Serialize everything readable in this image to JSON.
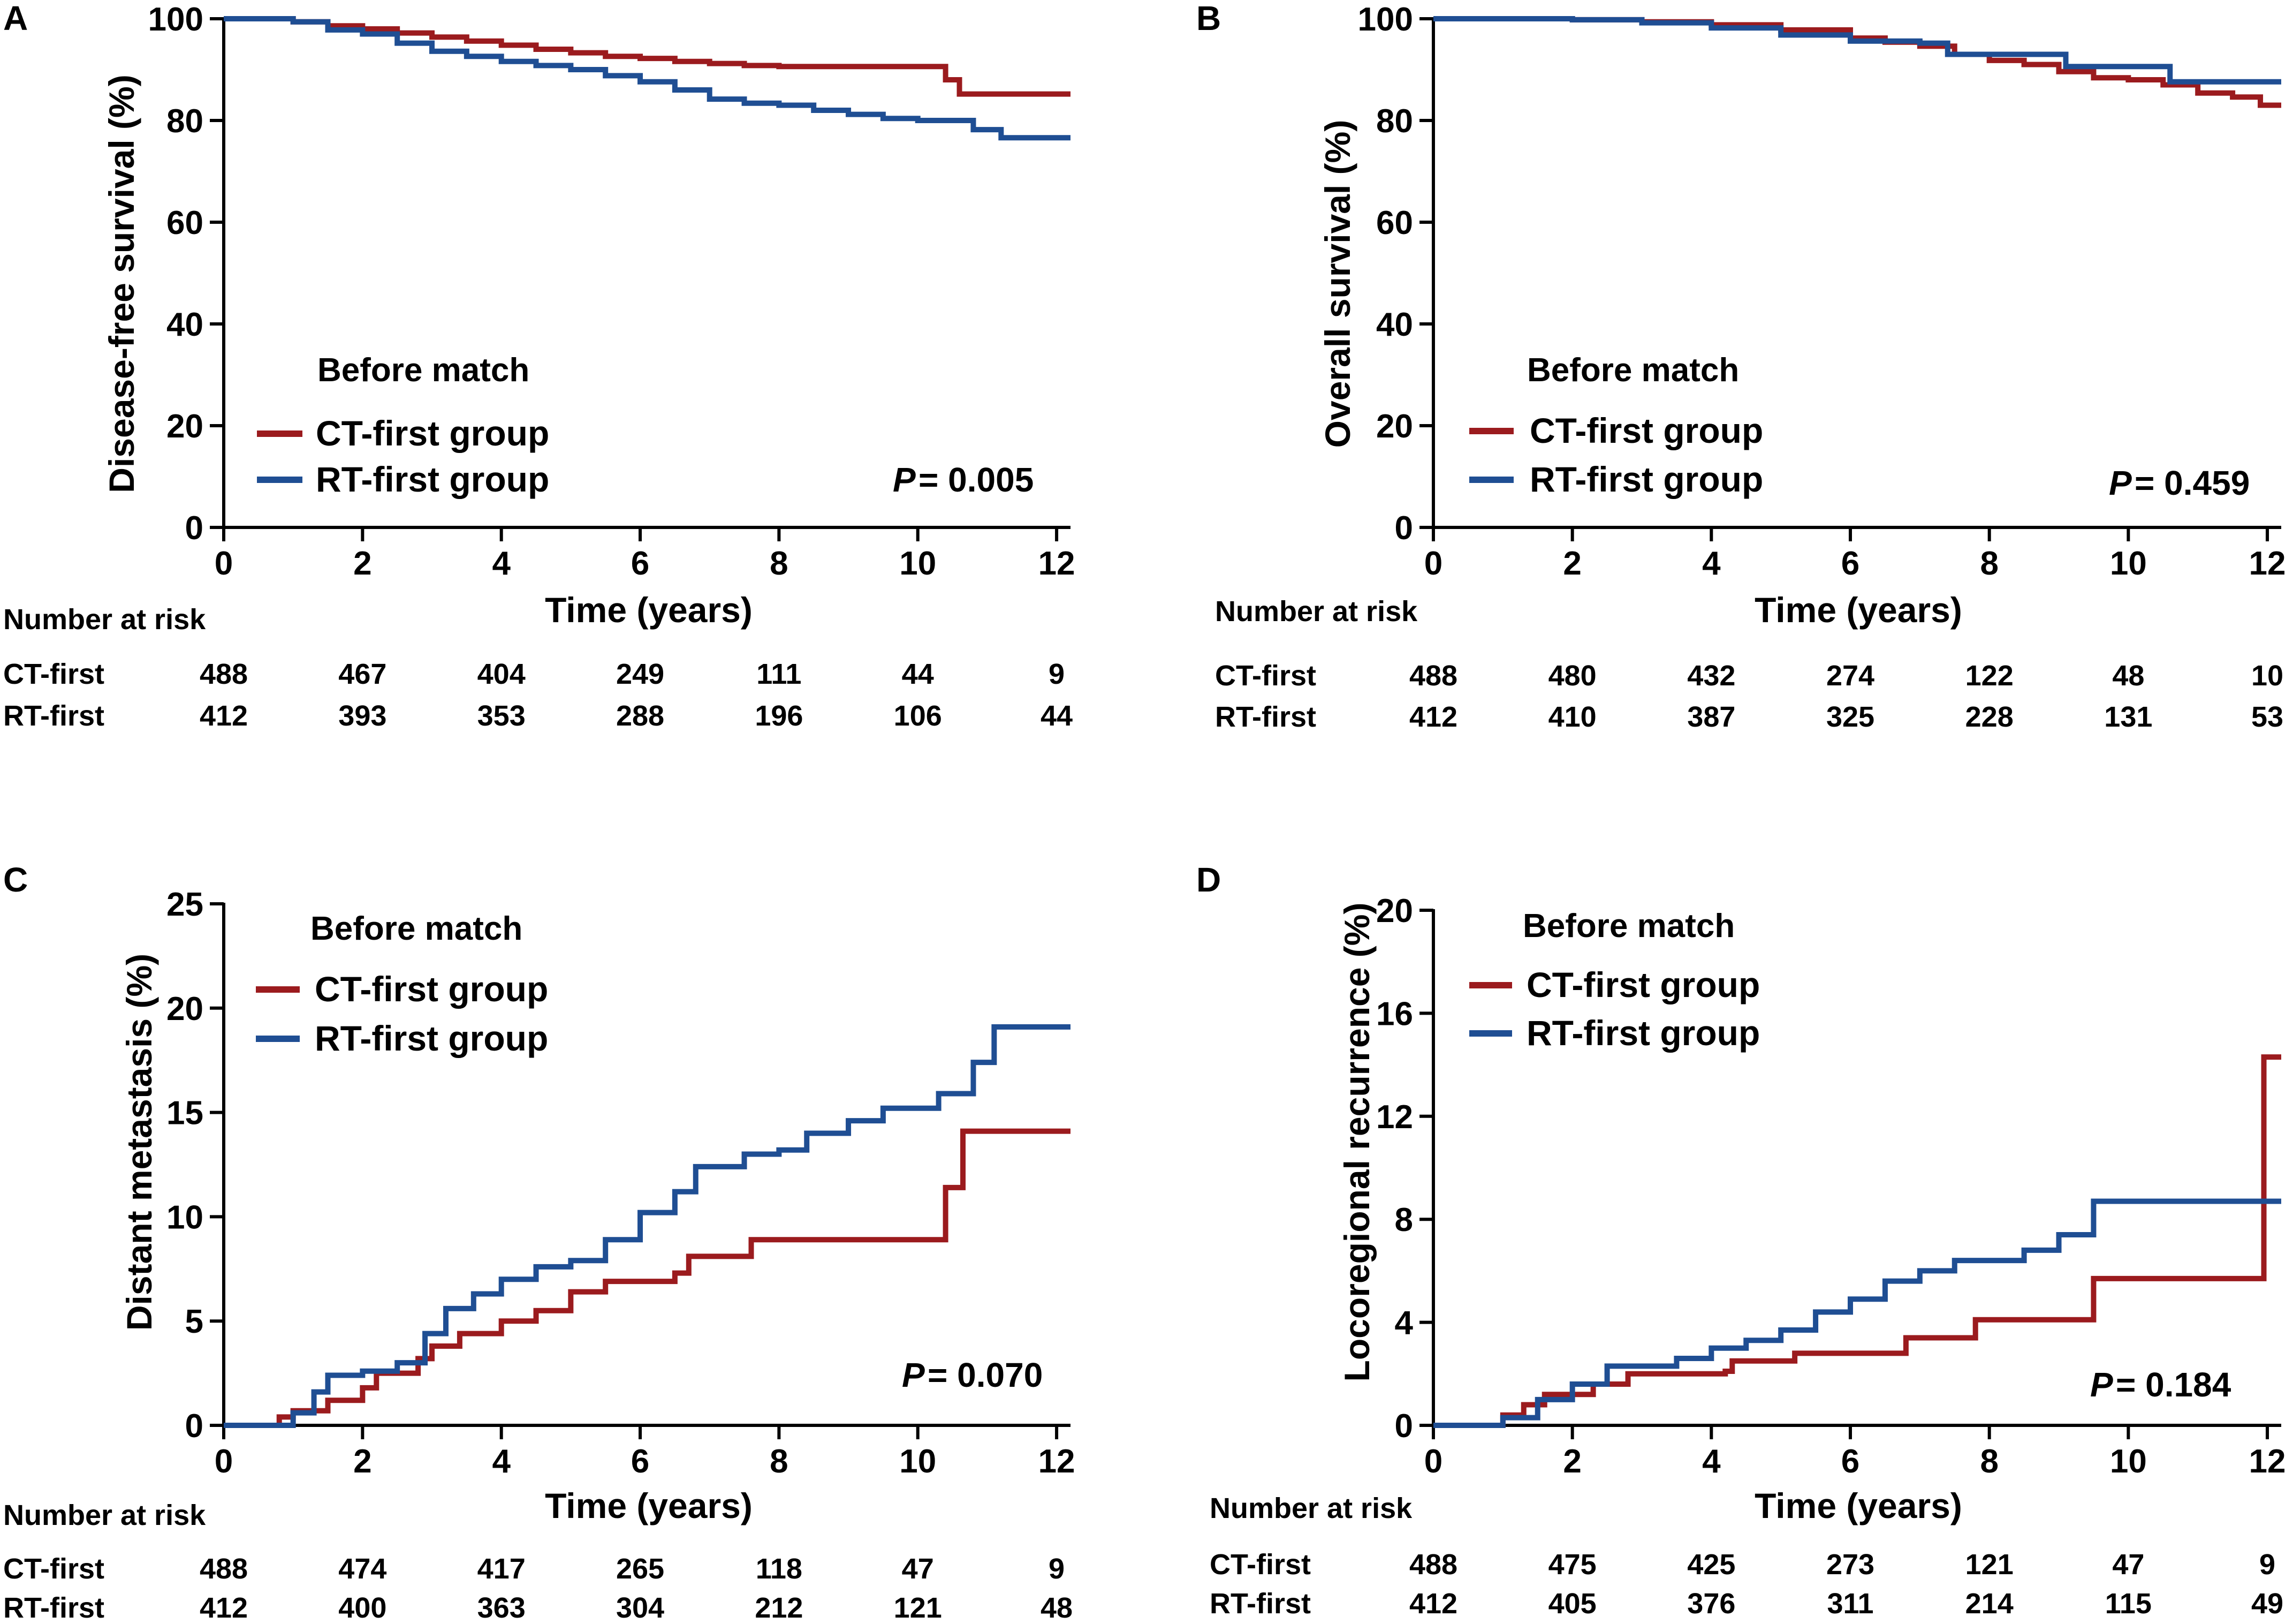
{
  "figure": {
    "legend_title": "Before match",
    "x_axis_title": "Time (years)",
    "number_at_risk_label": "Number at risk",
    "p_prefix": "P",
    "colors": {
      "ct": "#9b1b1e",
      "rt": "#1f4e93"
    }
  },
  "chart_data": [
    {
      "panel": "A",
      "type": "line",
      "title": "",
      "ylabel": "Disease-free survival (%)",
      "xlabel": "Time (years)",
      "xlim": [
        0,
        12.2
      ],
      "ylim": [
        0,
        100
      ],
      "xticks": [
        0,
        2,
        4,
        6,
        8,
        10,
        12
      ],
      "yticks": [
        0,
        20,
        40,
        60,
        80,
        100
      ],
      "legend_title": "Before match",
      "legend": [
        "CT-first group",
        "RT-first group"
      ],
      "p_value": "= 0.005",
      "risk_rows": [
        "CT-first",
        "RT-first"
      ],
      "risk_times": [
        0,
        2,
        4,
        6,
        8,
        10,
        12
      ],
      "risk": {
        "ct": [
          "488",
          "467",
          "404",
          "249",
          "111",
          "44",
          "9"
        ],
        "rt": [
          "412",
          "393",
          "353",
          "288",
          "196",
          "106",
          "44"
        ]
      },
      "series": [
        {
          "name": "CT-first group",
          "key": "ct",
          "points": [
            [
              0,
              100
            ],
            [
              0.5,
              100
            ],
            [
              1.0,
              99.4
            ],
            [
              1.5,
              98.6
            ],
            [
              2,
              98
            ],
            [
              2.5,
              97.2
            ],
            [
              3,
              96.4
            ],
            [
              3.5,
              95.6
            ],
            [
              4,
              94.8
            ],
            [
              4.5,
              94.0
            ],
            [
              5,
              93.3
            ],
            [
              5.5,
              92.6
            ],
            [
              6,
              92.2
            ],
            [
              6.5,
              91.6
            ],
            [
              7,
              91.2
            ],
            [
              7.5,
              90.8
            ],
            [
              8,
              90.6
            ],
            [
              9,
              90.6
            ],
            [
              10.4,
              90.6
            ],
            [
              10.4,
              88
            ],
            [
              10.6,
              88
            ],
            [
              10.6,
              85.2
            ],
            [
              12.2,
              85.2
            ]
          ]
        },
        {
          "name": "RT-first group",
          "key": "rt",
          "points": [
            [
              0,
              100
            ],
            [
              0.5,
              100
            ],
            [
              1.0,
              99.4
            ],
            [
              1.5,
              97.8
            ],
            [
              2,
              97
            ],
            [
              2.5,
              95.2
            ],
            [
              3,
              93.6
            ],
            [
              3.5,
              92.6
            ],
            [
              4,
              91.6
            ],
            [
              4.5,
              90.8
            ],
            [
              5,
              90.0
            ],
            [
              5.5,
              88.8
            ],
            [
              6,
              87.6
            ],
            [
              6.5,
              86.0
            ],
            [
              7,
              84.2
            ],
            [
              7.5,
              83.4
            ],
            [
              8,
              83.0
            ],
            [
              8.5,
              82.0
            ],
            [
              9,
              81.2
            ],
            [
              9.5,
              80.4
            ],
            [
              10,
              80.0
            ],
            [
              10.8,
              80.0
            ],
            [
              10.8,
              78.2
            ],
            [
              11.2,
              76.6
            ],
            [
              12.2,
              76.6
            ]
          ]
        }
      ]
    },
    {
      "panel": "B",
      "type": "line",
      "title": "",
      "ylabel": "Overall  survival (%)",
      "xlabel": "Time (years)",
      "xlim": [
        0,
        12.2
      ],
      "ylim": [
        0,
        100
      ],
      "xticks": [
        0,
        2,
        4,
        6,
        8,
        10,
        12
      ],
      "yticks": [
        0,
        20,
        40,
        60,
        80,
        100
      ],
      "legend_title": "Before match",
      "legend": [
        "CT-first group",
        "RT-first group"
      ],
      "p_value": "= 0.459",
      "risk_rows": [
        "CT-first",
        "RT-first"
      ],
      "risk_times": [
        0,
        2,
        4,
        6,
        8,
        10,
        12
      ],
      "risk": {
        "ct": [
          "488",
          "480",
          "432",
          "274",
          "122",
          "48",
          "10"
        ],
        "rt": [
          "412",
          "410",
          "387",
          "325",
          "228",
          "131",
          "53"
        ]
      },
      "series": [
        {
          "name": "CT-first group",
          "key": "ct",
          "points": [
            [
              0,
              100
            ],
            [
              1,
              100
            ],
            [
              2,
              99.8
            ],
            [
              3,
              99.4
            ],
            [
              4,
              98.8
            ],
            [
              5,
              97.8
            ],
            [
              6,
              96.2
            ],
            [
              6.5,
              95.4
            ],
            [
              7,
              94.6
            ],
            [
              7.5,
              93.0
            ],
            [
              8,
              91.8
            ],
            [
              8.5,
              91.0
            ],
            [
              9,
              89.6
            ],
            [
              9.5,
              88.4
            ],
            [
              10,
              88.0
            ],
            [
              10.5,
              87.0
            ],
            [
              11,
              85.4
            ],
            [
              11.5,
              84.6
            ],
            [
              11.9,
              84.6
            ],
            [
              11.9,
              83.0
            ],
            [
              12.2,
              83.0
            ]
          ]
        },
        {
          "name": "RT-first group",
          "key": "rt",
          "points": [
            [
              0,
              100
            ],
            [
              1,
              100
            ],
            [
              2,
              99.8
            ],
            [
              3,
              99.2
            ],
            [
              4,
              98.2
            ],
            [
              5,
              96.8
            ],
            [
              6,
              95.6
            ],
            [
              7,
              95.2
            ],
            [
              7.4,
              95.2
            ],
            [
              7.4,
              93.0
            ],
            [
              9.1,
              93.0
            ],
            [
              9.1,
              90.6
            ],
            [
              10.6,
              90.6
            ],
            [
              10.6,
              87.6
            ],
            [
              12.2,
              87.6
            ]
          ]
        }
      ]
    },
    {
      "panel": "C",
      "type": "line",
      "title": "",
      "ylabel": "Distant metastasis (%)",
      "xlabel": "Time (years)",
      "xlim": [
        0,
        12.2
      ],
      "ylim": [
        0,
        25
      ],
      "xticks": [
        0,
        2,
        4,
        6,
        8,
        10,
        12
      ],
      "yticks": [
        0,
        5,
        10,
        15,
        20,
        25
      ],
      "legend_title": "Before match",
      "legend": [
        "CT-first group",
        "RT-first group"
      ],
      "p_value": "= 0.070",
      "risk_rows": [
        "CT-first",
        "RT-first"
      ],
      "risk_times": [
        0,
        2,
        4,
        6,
        8,
        10,
        12
      ],
      "risk": {
        "ct": [
          "488",
          "474",
          "417",
          "265",
          "118",
          "47",
          "9"
        ],
        "rt": [
          "412",
          "400",
          "363",
          "304",
          "212",
          "121",
          "48"
        ]
      },
      "series": [
        {
          "name": "CT-first group",
          "key": "ct",
          "points": [
            [
              0,
              0
            ],
            [
              0.6,
              0
            ],
            [
              0.8,
              0.4
            ],
            [
              1.0,
              0.7
            ],
            [
              1.5,
              1.2
            ],
            [
              2,
              1.8
            ],
            [
              2.2,
              2.5
            ],
            [
              2.8,
              3.2
            ],
            [
              3.0,
              3.8
            ],
            [
              3.4,
              4.4
            ],
            [
              4,
              5.0
            ],
            [
              4.5,
              5.5
            ],
            [
              5,
              6.4
            ],
            [
              5.5,
              6.9
            ],
            [
              6.5,
              7.3
            ],
            [
              6.7,
              8.1
            ],
            [
              7.6,
              8.1
            ],
            [
              7.6,
              8.9
            ],
            [
              10.4,
              8.9
            ],
            [
              10.4,
              11.4
            ],
            [
              10.65,
              11.4
            ],
            [
              10.65,
              14.1
            ],
            [
              12.2,
              14.1
            ]
          ]
        },
        {
          "name": "RT-first group",
          "key": "rt",
          "points": [
            [
              0,
              0
            ],
            [
              0.6,
              0
            ],
            [
              1.0,
              0.6
            ],
            [
              1.3,
              1.6
            ],
            [
              1.5,
              2.4
            ],
            [
              2,
              2.6
            ],
            [
              2.5,
              3.0
            ],
            [
              2.9,
              4.4
            ],
            [
              3.2,
              5.6
            ],
            [
              3.6,
              6.3
            ],
            [
              4.0,
              7.0
            ],
            [
              4.5,
              7.6
            ],
            [
              5,
              7.9
            ],
            [
              5.5,
              8.9
            ],
            [
              6,
              10.2
            ],
            [
              6.5,
              11.2
            ],
            [
              6.8,
              12.4
            ],
            [
              7.5,
              13.0
            ],
            [
              8,
              13.2
            ],
            [
              8.4,
              14.0
            ],
            [
              9,
              14.6
            ],
            [
              9.5,
              15.2
            ],
            [
              10.3,
              15.2
            ],
            [
              10.3,
              15.9
            ],
            [
              10.8,
              15.9
            ],
            [
              10.8,
              17.4
            ],
            [
              11.1,
              17.4
            ],
            [
              11.1,
              19.1
            ],
            [
              12.2,
              19.1
            ]
          ]
        }
      ]
    },
    {
      "panel": "D",
      "type": "line",
      "title": "",
      "ylabel": "Locoregional recurrence (%)",
      "xlabel": "Time (years)",
      "xlim": [
        0,
        12.2
      ],
      "ylim": [
        0,
        20
      ],
      "xticks": [
        0,
        2,
        4,
        6,
        8,
        10,
        12
      ],
      "yticks": [
        0,
        4,
        8,
        12,
        16,
        20
      ],
      "legend_title": "Before match",
      "legend": [
        "CT-first group",
        "RT-first group"
      ],
      "p_value": "= 0.184",
      "risk_rows": [
        "CT-first",
        "RT-first"
      ],
      "risk_times": [
        0,
        2,
        4,
        6,
        8,
        10,
        12
      ],
      "risk": {
        "ct": [
          "488",
          "475",
          "425",
          "273",
          "121",
          "47",
          "9"
        ],
        "rt": [
          "412",
          "405",
          "376",
          "311",
          "214",
          "115",
          "49"
        ]
      },
      "series": [
        {
          "name": "CT-first group",
          "key": "ct",
          "points": [
            [
              0,
              0
            ],
            [
              0.7,
              0
            ],
            [
              1.0,
              0.4
            ],
            [
              1.3,
              0.8
            ],
            [
              1.6,
              1.2
            ],
            [
              2.3,
              1.6
            ],
            [
              2.8,
              2.0
            ],
            [
              4.2,
              2.1
            ],
            [
              4.3,
              2.5
            ],
            [
              5.2,
              2.8
            ],
            [
              6.8,
              2.8
            ],
            [
              6.8,
              3.4
            ],
            [
              7.8,
              3.4
            ],
            [
              7.8,
              4.1
            ],
            [
              9.5,
              4.1
            ],
            [
              9.5,
              5.7
            ],
            [
              11.95,
              5.7
            ],
            [
              11.95,
              14.3
            ],
            [
              12.2,
              14.3
            ]
          ]
        },
        {
          "name": "RT-first group",
          "key": "rt",
          "points": [
            [
              0,
              0
            ],
            [
              0.8,
              0
            ],
            [
              1.0,
              0.3
            ],
            [
              1.5,
              1.0
            ],
            [
              2.0,
              1.6
            ],
            [
              2.5,
              2.3
            ],
            [
              3.5,
              2.6
            ],
            [
              4.0,
              3.0
            ],
            [
              4.5,
              3.3
            ],
            [
              5,
              3.7
            ],
            [
              5.5,
              4.4
            ],
            [
              6,
              4.9
            ],
            [
              6.5,
              5.6
            ],
            [
              7,
              6.0
            ],
            [
              7.5,
              6.4
            ],
            [
              8.5,
              6.8
            ],
            [
              9,
              7.4
            ],
            [
              9.5,
              8.0
            ],
            [
              9.5,
              8.7
            ],
            [
              12.2,
              8.7
            ]
          ]
        }
      ]
    }
  ]
}
